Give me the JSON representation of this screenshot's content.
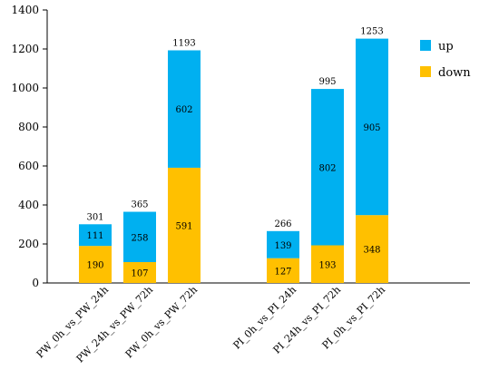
{
  "chart_data": {
    "type": "bar",
    "stacked": true,
    "categories": [
      "PW_0h_vs_PW_24h",
      "PW_24h_vs_PW_72h",
      "PW_0h_vs_PW_72h",
      "PI_0h_vs_PI_24h",
      "PI_24h_vs_PI_72h",
      "PI_0h_vs_PI_72h"
    ],
    "series": [
      {
        "name": "down",
        "color": "#FFC000",
        "values": [
          190,
          107,
          591,
          127,
          193,
          348
        ]
      },
      {
        "name": "up",
        "color": "#00B0F0",
        "values": [
          111,
          258,
          602,
          139,
          802,
          905
        ]
      }
    ],
    "totals": [
      301,
      365,
      1193,
      266,
      995,
      1253
    ],
    "ylim": [
      0,
      1400
    ],
    "yticks": [
      0,
      200,
      400,
      600,
      800,
      1000,
      1200,
      1400
    ],
    "title": "",
    "xlabel": "",
    "ylabel": "",
    "legend": {
      "position": "top-right",
      "entries": [
        {
          "label": "up",
          "color": "#00B0F0"
        },
        {
          "label": "down",
          "color": "#FFC000"
        }
      ]
    },
    "grid": false
  }
}
